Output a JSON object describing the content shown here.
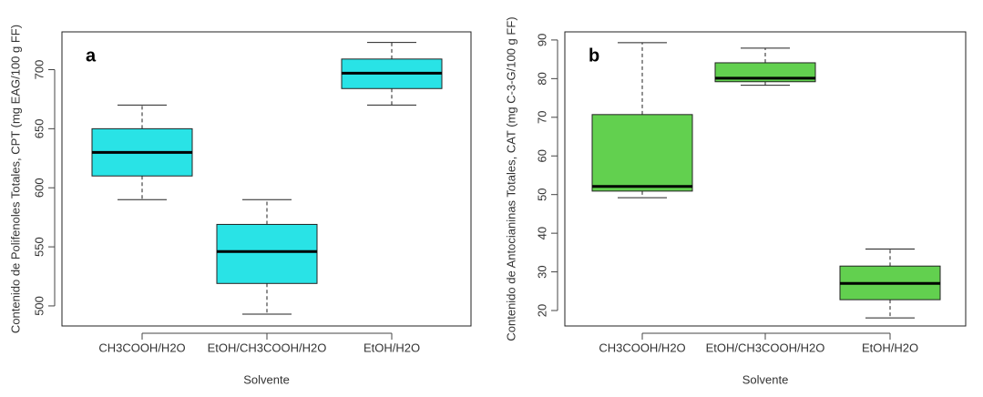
{
  "chart_data": [
    {
      "type": "box",
      "annotation": "a",
      "x_label": "Solvente",
      "y_label": "Contenido de Polifenoles Totales, CPT (mg EAG/100 g FF)",
      "categories": [
        "CH3COOH/H2O",
        "EtOH/CH3COOH/H2O",
        "EtOH/H2O"
      ],
      "whisker_low": [
        590,
        493,
        670
      ],
      "q1": [
        610,
        519,
        684
      ],
      "median": [
        630,
        546,
        697
      ],
      "q3": [
        650,
        569,
        709
      ],
      "whisker_high": [
        670,
        590,
        723
      ],
      "color": "#29e3e6",
      "ylim": [
        483,
        732
      ],
      "yticks": [
        500,
        550,
        600,
        650,
        700
      ]
    },
    {
      "type": "box",
      "annotation": "b",
      "x_label": "Solvente",
      "y_label": "Contenido de Antocianinas Totales, CAT (mg C-3-G/100 g FF)",
      "categories": [
        "CH3COOH/H2O",
        "EtOH/CH3COOH/H2O",
        "EtOH/H2O"
      ],
      "whisker_low": [
        49.2,
        78.3,
        18.1
      ],
      "q1": [
        50.9,
        79.2,
        22.8
      ],
      "median": [
        52.1,
        80.1,
        27
      ],
      "q3": [
        70.7,
        84.1,
        31.5
      ],
      "whisker_high": [
        89.3,
        87.9,
        35.9
      ],
      "color": "#62d04f",
      "ylim": [
        16,
        92.1
      ],
      "yticks": [
        20,
        30,
        40,
        50,
        60,
        70,
        80,
        90
      ]
    }
  ]
}
